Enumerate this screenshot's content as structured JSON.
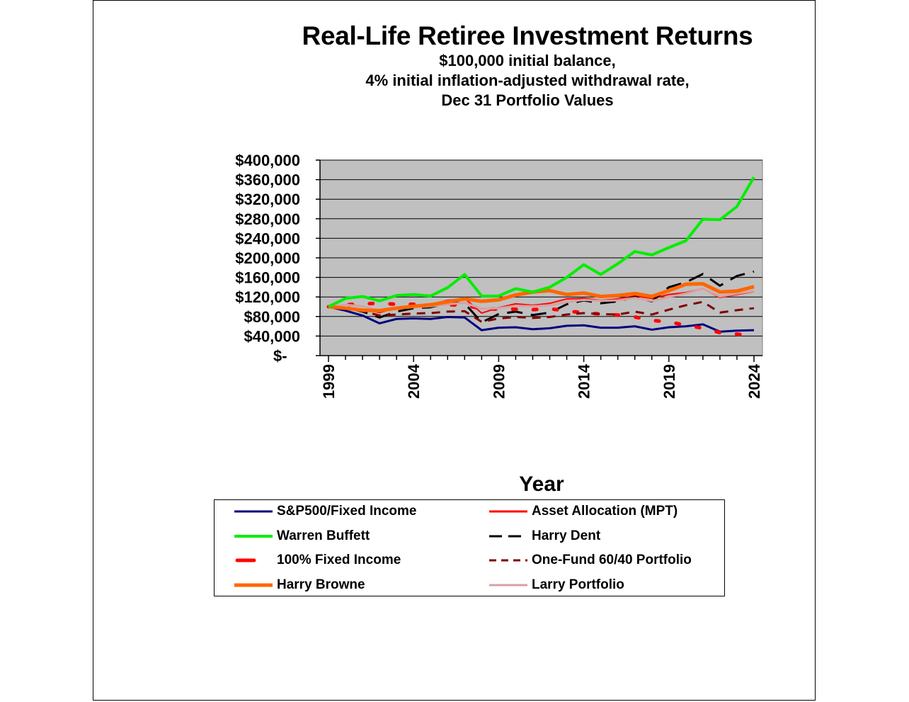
{
  "chart_data": {
    "type": "line",
    "title": "Real-Life Retiree Investment Returns",
    "subtitle": [
      "$100,000 initial balance,",
      "4%  initial inflation-adjusted withdrawal rate,",
      "Dec 31 Portfolio Values"
    ],
    "xlabel": "Year",
    "ylabel": "",
    "xlim": [
      1999,
      2024
    ],
    "ylim": [
      0,
      400000
    ],
    "x_ticks": [
      1999,
      2004,
      2009,
      2014,
      2019,
      2024
    ],
    "y_ticks": [
      0,
      40000,
      80000,
      120000,
      160000,
      200000,
      240000,
      280000,
      320000,
      360000,
      400000
    ],
    "y_tick_labels": [
      "$-",
      "$40,000",
      "$80,000",
      "$120,000",
      "$160,000",
      "$200,000",
      "$240,000",
      "$280,000",
      "$320,000",
      "$360,000",
      "$400,000"
    ],
    "plot_background": "#c0c0c0",
    "grid": "horizontal",
    "legend_position": "bottom",
    "x": [
      1999,
      2000,
      2001,
      2002,
      2003,
      2004,
      2005,
      2006,
      2007,
      2008,
      2009,
      2010,
      2011,
      2012,
      2013,
      2014,
      2015,
      2016,
      2017,
      2018,
      2019,
      2020,
      2021,
      2022,
      2023,
      2024
    ],
    "series": [
      {
        "name": "S&P500/Fixed Income",
        "color": "#000080",
        "style": "solid",
        "width": 3,
        "values": [
          100000,
          92000,
          82000,
          66000,
          75000,
          76000,
          75000,
          79000,
          78000,
          52000,
          57000,
          58000,
          54000,
          56000,
          61000,
          62000,
          57000,
          57000,
          60000,
          53000,
          58000,
          60000,
          64000,
          49000,
          51000,
          52000
        ]
      },
      {
        "name": "Asset Allocation (MPT)",
        "color": "#ff0000",
        "style": "solid",
        "width": 2,
        "values": [
          100000,
          97000,
          95000,
          88000,
          98000,
          102000,
          105000,
          113000,
          117000,
          87000,
          98000,
          106000,
          103000,
          107000,
          116000,
          117000,
          113000,
          116000,
          122000,
          117000,
          125000,
          129000,
          137000,
          119000,
          125000,
          131000
        ]
      },
      {
        "name": "Warren Buffett",
        "color": "#00ee00",
        "style": "solid",
        "width": 4,
        "values": [
          100000,
          117000,
          121000,
          112000,
          123000,
          125000,
          122000,
          139000,
          166000,
          122000,
          122000,
          137000,
          130000,
          140000,
          160000,
          186000,
          166000,
          188000,
          213000,
          206000,
          221000,
          235000,
          279000,
          278000,
          305000,
          365000
        ]
      },
      {
        "name": "Harry Dent",
        "color": "#000000",
        "style": "longdash",
        "width": 3,
        "values": [
          100000,
          98000,
          90000,
          78000,
          90000,
          97000,
          99000,
          108000,
          107000,
          68000,
          85000,
          90000,
          83000,
          88000,
          105000,
          113000,
          107000,
          111000,
          120000,
          111000,
          140000,
          150000,
          167000,
          143000,
          163000,
          172000
        ]
      },
      {
        "name": "100%  Fixed Income",
        "color": "#ff0000",
        "style": "dots",
        "width": 5,
        "values": [
          100000,
          104000,
          106000,
          107000,
          105000,
          105000,
          104000,
          104000,
          103000,
          96000,
          95000,
          95000,
          94000,
          96000,
          91000,
          88000,
          85000,
          83000,
          79000,
          72000,
          69000,
          62000,
          56000,
          47000,
          44000,
          40000
        ]
      },
      {
        "name": "One-Fund 60/40 Portfolio",
        "color": "#800000",
        "style": "dash",
        "width": 3,
        "values": [
          100000,
          96000,
          91000,
          82000,
          84000,
          86000,
          87000,
          90000,
          91000,
          69000,
          76000,
          79000,
          77000,
          79000,
          84000,
          87000,
          85000,
          84000,
          90000,
          84000,
          94000,
          103000,
          110000,
          88000,
          93000,
          97000
        ]
      },
      {
        "name": "Harry Browne",
        "color": "#ff6600",
        "style": "solid",
        "width": 5,
        "values": [
          100000,
          97000,
          93000,
          92000,
          97000,
          101000,
          104000,
          110000,
          116000,
          111000,
          114000,
          124000,
          130000,
          133000,
          125000,
          128000,
          121000,
          123000,
          127000,
          121000,
          133000,
          146000,
          147000,
          130000,
          132000,
          141000
        ]
      },
      {
        "name": "Larry Portfolio",
        "color": "#d9a0a0",
        "style": "solid",
        "width": 3,
        "values": [
          100000,
          104000,
          101000,
          92000,
          96000,
          99000,
          101000,
          105000,
          108000,
          96000,
          97000,
          102000,
          101000,
          103000,
          110000,
          114000,
          112000,
          113000,
          118000,
          112000,
          120000,
          127000,
          137000,
          121000,
          127000,
          132000
        ]
      }
    ]
  }
}
